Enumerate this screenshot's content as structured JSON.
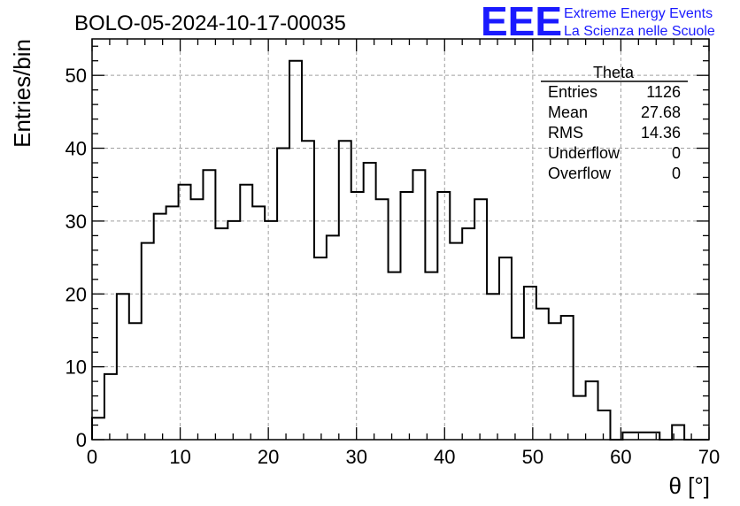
{
  "chart_data": {
    "type": "bar",
    "title": "BOLO-05-2024-10-17-00035",
    "xlabel": "θ [°]",
    "ylabel": "Entries/bin",
    "xlim": [
      0,
      70
    ],
    "ylim": [
      0,
      55
    ],
    "xticks": [
      "0",
      "10",
      "20",
      "30",
      "40",
      "50",
      "60",
      "70"
    ],
    "yticks": [
      "0",
      "10",
      "20",
      "30",
      "40",
      "50"
    ],
    "grid": true,
    "bin_width": 1.4,
    "bin_edges_start": 0,
    "values": [
      3,
      9,
      20,
      16,
      27,
      31,
      32,
      35,
      33,
      37,
      29,
      30,
      35,
      32,
      30,
      40,
      52,
      41,
      25,
      28,
      41,
      34,
      38,
      33,
      23,
      34,
      37,
      23,
      34,
      27,
      29,
      33,
      20,
      25,
      14,
      21,
      18,
      16,
      17,
      6,
      8,
      4,
      0,
      1,
      1,
      1,
      0,
      2,
      0,
      0
    ],
    "stats_box": {
      "name": "Theta",
      "rows": [
        {
          "label": "Entries",
          "value": "1126"
        },
        {
          "label": "Mean",
          "value": "27.68"
        },
        {
          "label": "RMS",
          "value": "14.36"
        },
        {
          "label": "Underflow",
          "value": "0"
        },
        {
          "label": "Overflow",
          "value": "0"
        }
      ]
    }
  },
  "logo": {
    "mark": "EEE",
    "line1": "Extreme Energy Events",
    "line2": "La Scienza nelle Scuole",
    "color": "#1a1aff"
  }
}
